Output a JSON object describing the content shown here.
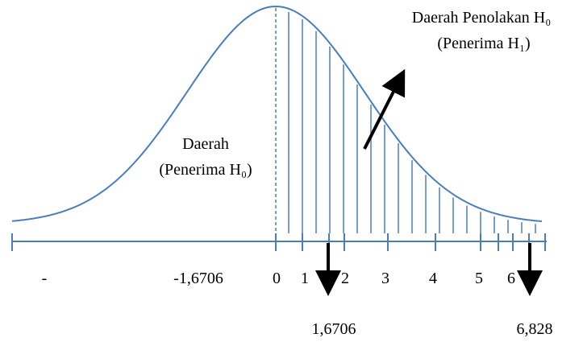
{
  "labels": {
    "rejection_title": "Daerah Penolakan H₀",
    "rejection_sub": "(Penerima H₁)",
    "acceptance_title": "Daerah",
    "acceptance_sub": "(Penerima H₀)"
  },
  "axis": {
    "left_end": "-",
    "left_critical": "-1,6706",
    "ticks": [
      "0",
      "1",
      "2",
      "3",
      "4",
      "5",
      "6"
    ]
  },
  "markers": {
    "critical": "1,6706",
    "statistic": "6,828"
  }
}
